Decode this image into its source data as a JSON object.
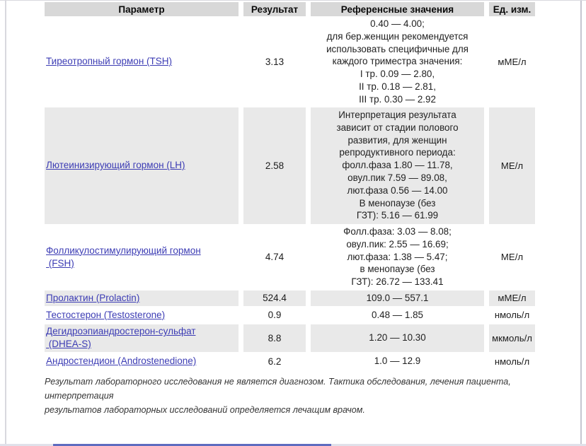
{
  "table": {
    "headers": [
      "Параметр",
      "Результат",
      "Референсные значения",
      "Ед. изм."
    ],
    "rows": [
      {
        "parameter": "Тиреотропный гормон (TSH)",
        "result": "3.13",
        "reference": "0.40 — 4.00;\nдля бер.женщин рекомендуется\nиспользовать специфичные для\nкаждого триместра значения:\nI тр. 0.09 — 2.80,\nII тр. 0.18 — 2.81,\nIII тр. 0.30 — 2.92",
        "unit": "мМЕ/л"
      },
      {
        "parameter": "Лютеинизирующий гормон (LH)",
        "result": "2.58",
        "reference": "Интерпретация результата\nзависит от стадии полового\nразвития, для женщин\nрепродуктивного периода:\nфолл.фаза 1.80 — 11.78,\nовул.пик 7.59 — 89.08,\nлют.фаза 0.56 — 14.00\nВ менопаузе (без\nГЗТ): 5.16 — 61.99",
        "unit": "МЕ/л"
      },
      {
        "parameter": "Фолликулостимулирующий гормон\n (FSH)",
        "result": "4.74",
        "reference": "Фолл.фаза: 3.03 — 8.08;\nовул.пик: 2.55 — 16.69;\nлют.фаза: 1.38 — 5.47;\nв менопаузе (без\nГЗТ): 26.72 — 133.41",
        "unit": "МЕ/л"
      },
      {
        "parameter": "Пролактин (Prolactin)",
        "result": "524.4",
        "reference": "109.0 — 557.1",
        "unit": "мМЕ/л"
      },
      {
        "parameter": "Тестостерон (Testosterone)",
        "result": "0.9",
        "reference": "0.48 — 1.85",
        "unit": "нмоль/л"
      },
      {
        "parameter": "Дегидроэпиандростерон-сульфат\n (DHEA-S)",
        "result": "8.8",
        "reference": "1.20 — 10.30",
        "unit": "мкмоль/л"
      },
      {
        "parameter": "Андростендион (Androstenedione)",
        "result": "6.2",
        "reference": "1.0 — 12.9",
        "unit": "нмоль/л"
      }
    ]
  },
  "footer": {
    "disclaimer": "Результат лабораторного исследования не является диагнозом. Тактика обследования, лечения пациента, интерпретация\nрезультатов лабораторных исследований определяется лечащим врачом."
  },
  "colors": {
    "link": "#3c3cb4",
    "header_bg": "#d8d8d8",
    "stripe_bg": "#e9e9e9",
    "scroll_thumb": "#5e6cc0",
    "window_border": "#d8d8de"
  }
}
